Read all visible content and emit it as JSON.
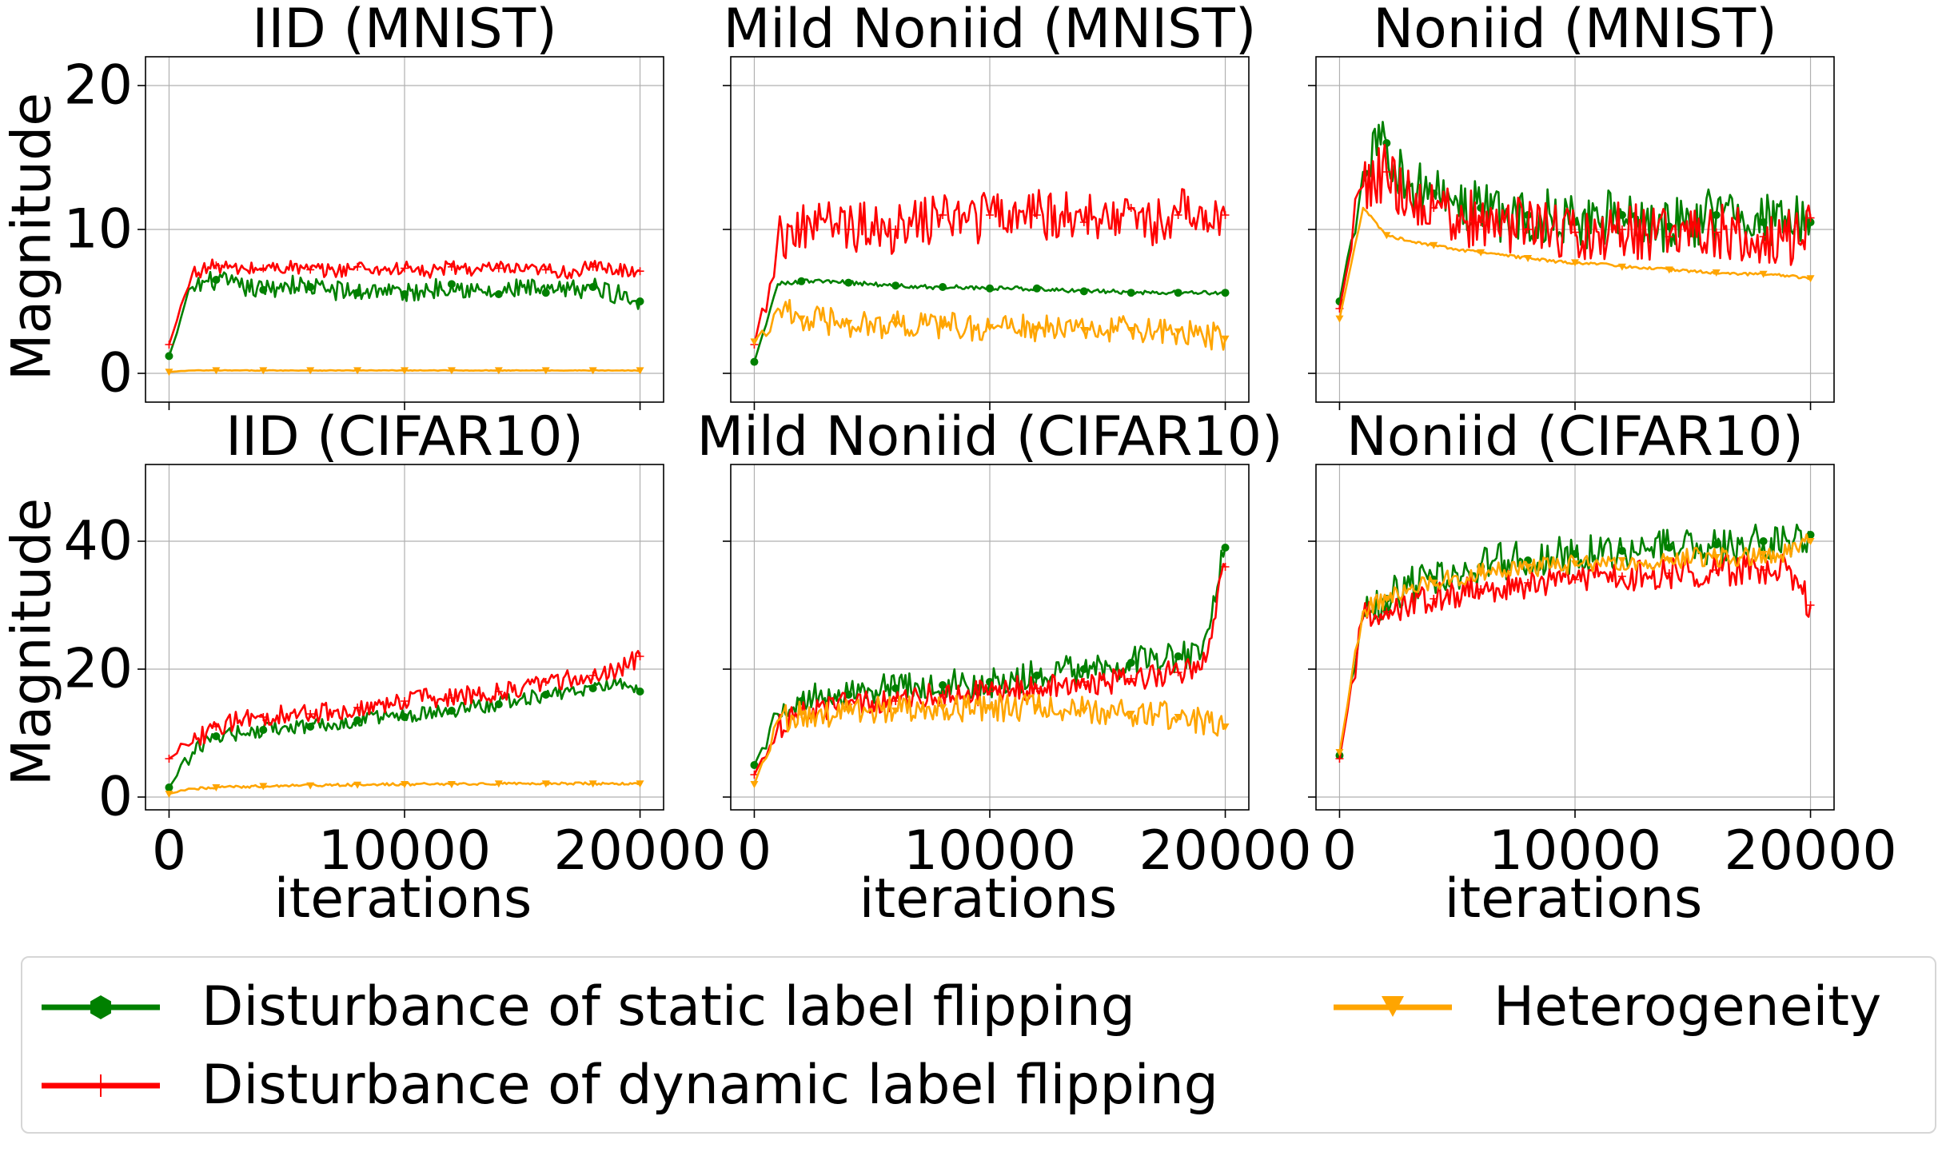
{
  "colors": {
    "static": "#008000",
    "dynamic": "#ff0000",
    "heterogeneity": "#ffa500",
    "grid": "#b0b0b0"
  },
  "legend": {
    "static": "Disturbance of static label flipping",
    "dynamic": "Disturbance of dynamic label flipping",
    "heterogeneity": "Heterogeneity"
  },
  "axis_labels": {
    "ylabel_top": "Magnitude",
    "ylabel_bottom": "Magnitude",
    "xlabel": "iterations"
  },
  "chart_data": [
    {
      "type": "line",
      "title": "IID (MNIST)",
      "ylim": [
        -2,
        22
      ],
      "xlim": [
        -1000,
        21000
      ],
      "yticks": [
        0,
        10,
        20
      ],
      "xticks": [
        0,
        10000,
        20000
      ],
      "grid": true,
      "x": [
        0,
        1000,
        2000,
        3000,
        4000,
        5000,
        6000,
        7000,
        8000,
        9000,
        10000,
        11000,
        12000,
        13000,
        14000,
        15000,
        16000,
        17000,
        18000,
        19000,
        20000
      ],
      "series": [
        {
          "name": "Disturbance of static label flipping",
          "key": "static",
          "marker": "circle",
          "noise": 0.7,
          "values": [
            1.2,
            6.0,
            6.5,
            6.0,
            5.8,
            6.2,
            6.0,
            5.8,
            5.6,
            5.9,
            5.5,
            5.8,
            6.2,
            5.7,
            5.5,
            6.0,
            5.6,
            5.8,
            6.0,
            5.5,
            5.0
          ]
        },
        {
          "name": "Disturbance of dynamic label flipping",
          "key": "dynamic",
          "marker": "plus",
          "noise": 0.5,
          "values": [
            2.0,
            7.0,
            7.5,
            7.2,
            7.3,
            7.4,
            7.2,
            7.1,
            7.4,
            7.2,
            7.3,
            7.0,
            7.4,
            7.2,
            7.3,
            7.1,
            7.2,
            7.0,
            7.4,
            7.2,
            7.1
          ]
        },
        {
          "name": "Heterogeneity",
          "key": "heterogeneity",
          "marker": "triangle-down",
          "noise": 0.02,
          "values": [
            0.1,
            0.2,
            0.2,
            0.2,
            0.2,
            0.2,
            0.2,
            0.2,
            0.2,
            0.2,
            0.2,
            0.2,
            0.2,
            0.2,
            0.2,
            0.2,
            0.2,
            0.2,
            0.2,
            0.2,
            0.2
          ]
        }
      ]
    },
    {
      "type": "line",
      "title": "Mild Noniid (MNIST)",
      "ylim": [
        -2,
        22
      ],
      "xlim": [
        -1000,
        21000
      ],
      "yticks": [
        0,
        10,
        20
      ],
      "xticks": [
        0,
        10000,
        20000
      ],
      "grid": true,
      "x": [
        0,
        1000,
        2000,
        3000,
        4000,
        5000,
        6000,
        7000,
        8000,
        9000,
        10000,
        11000,
        12000,
        13000,
        14000,
        15000,
        16000,
        17000,
        18000,
        19000,
        20000
      ],
      "series": [
        {
          "name": "Disturbance of static label flipping",
          "key": "static",
          "marker": "circle",
          "noise": 0.15,
          "values": [
            0.8,
            6.2,
            6.4,
            6.4,
            6.3,
            6.2,
            6.1,
            6.0,
            6.0,
            6.0,
            5.9,
            5.9,
            5.9,
            5.8,
            5.7,
            5.7,
            5.6,
            5.6,
            5.6,
            5.6,
            5.6
          ]
        },
        {
          "name": "Disturbance of dynamic label flipping",
          "key": "dynamic",
          "marker": "plus",
          "noise": 1.8,
          "values": [
            2.0,
            9.5,
            10.0,
            10.5,
            10.0,
            10.5,
            10.0,
            10.5,
            11.0,
            10.5,
            11.0,
            11.5,
            11.0,
            11.0,
            10.5,
            11.0,
            11.5,
            10.5,
            11.0,
            11.5,
            11.0
          ]
        },
        {
          "name": "Heterogeneity",
          "key": "heterogeneity",
          "marker": "triangle-down",
          "noise": 1.0,
          "values": [
            2.2,
            4.5,
            3.8,
            3.6,
            3.5,
            3.4,
            3.4,
            3.3,
            3.3,
            3.2,
            3.2,
            3.2,
            3.1,
            3.1,
            3.0,
            3.0,
            3.0,
            2.9,
            2.9,
            2.8,
            2.4
          ]
        }
      ]
    },
    {
      "type": "line",
      "title": "Noniid (MNIST)",
      "ylim": [
        -2,
        22
      ],
      "xlim": [
        -1000,
        21000
      ],
      "yticks": [
        0,
        10,
        20
      ],
      "xticks": [
        0,
        10000,
        20000
      ],
      "grid": true,
      "x": [
        0,
        1000,
        2000,
        3000,
        4000,
        5000,
        6000,
        7000,
        8000,
        9000,
        10000,
        11000,
        12000,
        13000,
        14000,
        15000,
        16000,
        17000,
        18000,
        19000,
        20000
      ],
      "series": [
        {
          "name": "Disturbance of static label flipping",
          "key": "static",
          "marker": "circle",
          "noise": 2.0,
          "values": [
            5.0,
            14.0,
            16.0,
            13.0,
            12.5,
            12.0,
            11.5,
            11.0,
            11.0,
            10.8,
            10.5,
            10.5,
            11.0,
            10.5,
            10.2,
            10.5,
            11.0,
            10.5,
            10.5,
            10.2,
            10.5
          ]
        },
        {
          "name": "Disturbance of dynamic label flipping",
          "key": "dynamic",
          "marker": "plus",
          "noise": 2.0,
          "values": [
            4.5,
            13.0,
            14.0,
            12.0,
            11.5,
            11.0,
            10.5,
            10.5,
            10.0,
            10.0,
            9.8,
            9.8,
            10.0,
            9.6,
            9.5,
            9.5,
            9.8,
            9.5,
            9.5,
            9.2,
            10.8
          ]
        },
        {
          "name": "Heterogeneity",
          "key": "heterogeneity",
          "marker": "triangle-down",
          "noise": 0.1,
          "values": [
            3.8,
            11.5,
            9.6,
            9.2,
            8.9,
            8.6,
            8.4,
            8.2,
            8.0,
            7.8,
            7.7,
            7.6,
            7.4,
            7.3,
            7.2,
            7.1,
            7.0,
            6.9,
            6.9,
            6.8,
            6.6
          ]
        }
      ]
    },
    {
      "type": "line",
      "title": "IID (CIFAR10)",
      "ylim": [
        -2,
        52
      ],
      "xlim": [
        -1000,
        21000
      ],
      "yticks": [
        0,
        20,
        40
      ],
      "xticks": [
        0,
        10000,
        20000
      ],
      "grid": true,
      "x": [
        0,
        1000,
        2000,
        3000,
        4000,
        5000,
        6000,
        7000,
        8000,
        9000,
        10000,
        11000,
        12000,
        13000,
        14000,
        15000,
        16000,
        17000,
        18000,
        19000,
        20000
      ],
      "series": [
        {
          "name": "Disturbance of static label flipping",
          "key": "static",
          "marker": "circle",
          "noise": 1.2,
          "values": [
            1.5,
            7.0,
            9.5,
            10.0,
            10.5,
            11.0,
            11.0,
            11.5,
            12.0,
            12.5,
            12.5,
            13.0,
            13.5,
            14.0,
            14.5,
            15.5,
            16.0,
            16.5,
            17.0,
            17.5,
            16.5
          ]
        },
        {
          "name": "Disturbance of dynamic label flipping",
          "key": "dynamic",
          "marker": "plus",
          "noise": 1.5,
          "values": [
            6.0,
            8.5,
            11.0,
            12.0,
            12.5,
            13.0,
            13.0,
            13.5,
            14.0,
            14.5,
            15.0,
            15.5,
            15.5,
            16.0,
            16.5,
            17.0,
            18.0,
            18.5,
            19.0,
            19.5,
            22.0
          ]
        },
        {
          "name": "Heterogeneity",
          "key": "heterogeneity",
          "marker": "triangle-down",
          "noise": 0.2,
          "values": [
            0.5,
            1.3,
            1.5,
            1.6,
            1.7,
            1.8,
            1.8,
            1.9,
            1.9,
            2.0,
            2.0,
            2.0,
            2.0,
            2.0,
            2.1,
            2.1,
            2.1,
            2.1,
            2.1,
            2.1,
            2.1
          ]
        }
      ]
    },
    {
      "type": "line",
      "title": "Mild Noniid (CIFAR10)",
      "ylim": [
        -2,
        52
      ],
      "xlim": [
        -1000,
        21000
      ],
      "yticks": [
        0,
        20,
        40
      ],
      "xticks": [
        0,
        10000,
        20000
      ],
      "grid": true,
      "x": [
        0,
        1000,
        2000,
        3000,
        4000,
        5000,
        6000,
        7000,
        8000,
        9000,
        10000,
        11000,
        12000,
        13000,
        14000,
        15000,
        16000,
        17000,
        18000,
        19000,
        20000
      ],
      "series": [
        {
          "name": "Disturbance of static label flipping",
          "key": "static",
          "marker": "circle",
          "noise": 2.5,
          "values": [
            5.0,
            13.0,
            15.0,
            15.5,
            16.0,
            16.5,
            17.0,
            17.0,
            17.5,
            17.5,
            18.0,
            18.5,
            19.0,
            19.5,
            20.0,
            20.5,
            21.0,
            21.5,
            22.0,
            22.5,
            39.0
          ]
        },
        {
          "name": "Disturbance of dynamic label flipping",
          "key": "dynamic",
          "marker": "plus",
          "noise": 2.0,
          "values": [
            3.5,
            11.0,
            13.0,
            14.0,
            14.5,
            15.0,
            15.0,
            15.5,
            16.0,
            16.0,
            16.5,
            17.0,
            17.0,
            17.5,
            18.0,
            18.0,
            18.5,
            19.0,
            19.5,
            20.0,
            36.0
          ]
        },
        {
          "name": "Heterogeneity",
          "key": "heterogeneity",
          "marker": "triangle-down",
          "noise": 2.2,
          "values": [
            2.0,
            12.0,
            13.0,
            13.0,
            13.5,
            13.5,
            13.5,
            14.0,
            14.0,
            14.0,
            14.0,
            14.0,
            14.0,
            13.5,
            13.5,
            13.5,
            13.0,
            13.0,
            12.5,
            12.0,
            11.0
          ]
        }
      ]
    },
    {
      "type": "line",
      "title": "Noniid (CIFAR10)",
      "ylim": [
        -2,
        52
      ],
      "xlim": [
        -1000,
        21000
      ],
      "yticks": [
        0,
        20,
        40
      ],
      "xticks": [
        0,
        10000,
        20000
      ],
      "grid": true,
      "x": [
        0,
        1000,
        2000,
        3000,
        4000,
        5000,
        6000,
        7000,
        8000,
        9000,
        10000,
        11000,
        12000,
        13000,
        14000,
        15000,
        16000,
        17000,
        18000,
        19000,
        20000
      ],
      "series": [
        {
          "name": "Disturbance of static label flipping",
          "key": "static",
          "marker": "circle",
          "noise": 3.0,
          "values": [
            6.5,
            29.0,
            31.0,
            33.0,
            34.0,
            35.0,
            36.0,
            37.0,
            37.0,
            37.5,
            38.0,
            38.0,
            38.5,
            38.5,
            39.0,
            39.0,
            39.5,
            39.5,
            40.0,
            40.0,
            41.0
          ]
        },
        {
          "name": "Disturbance of dynamic label flipping",
          "key": "dynamic",
          "marker": "plus",
          "noise": 2.5,
          "values": [
            6.0,
            28.0,
            29.0,
            30.0,
            31.0,
            32.0,
            32.5,
            33.0,
            33.5,
            34.0,
            34.0,
            34.5,
            34.5,
            35.0,
            35.0,
            35.0,
            35.5,
            35.5,
            35.5,
            35.5,
            30.0
          ]
        },
        {
          "name": "Heterogeneity",
          "key": "heterogeneity",
          "marker": "triangle-down",
          "noise": 1.5,
          "values": [
            7.0,
            29.0,
            31.0,
            32.5,
            33.5,
            34.5,
            35.0,
            35.5,
            36.0,
            36.0,
            36.5,
            36.5,
            37.0,
            37.0,
            37.0,
            37.5,
            37.5,
            37.5,
            38.0,
            38.0,
            40.0
          ]
        }
      ]
    }
  ]
}
